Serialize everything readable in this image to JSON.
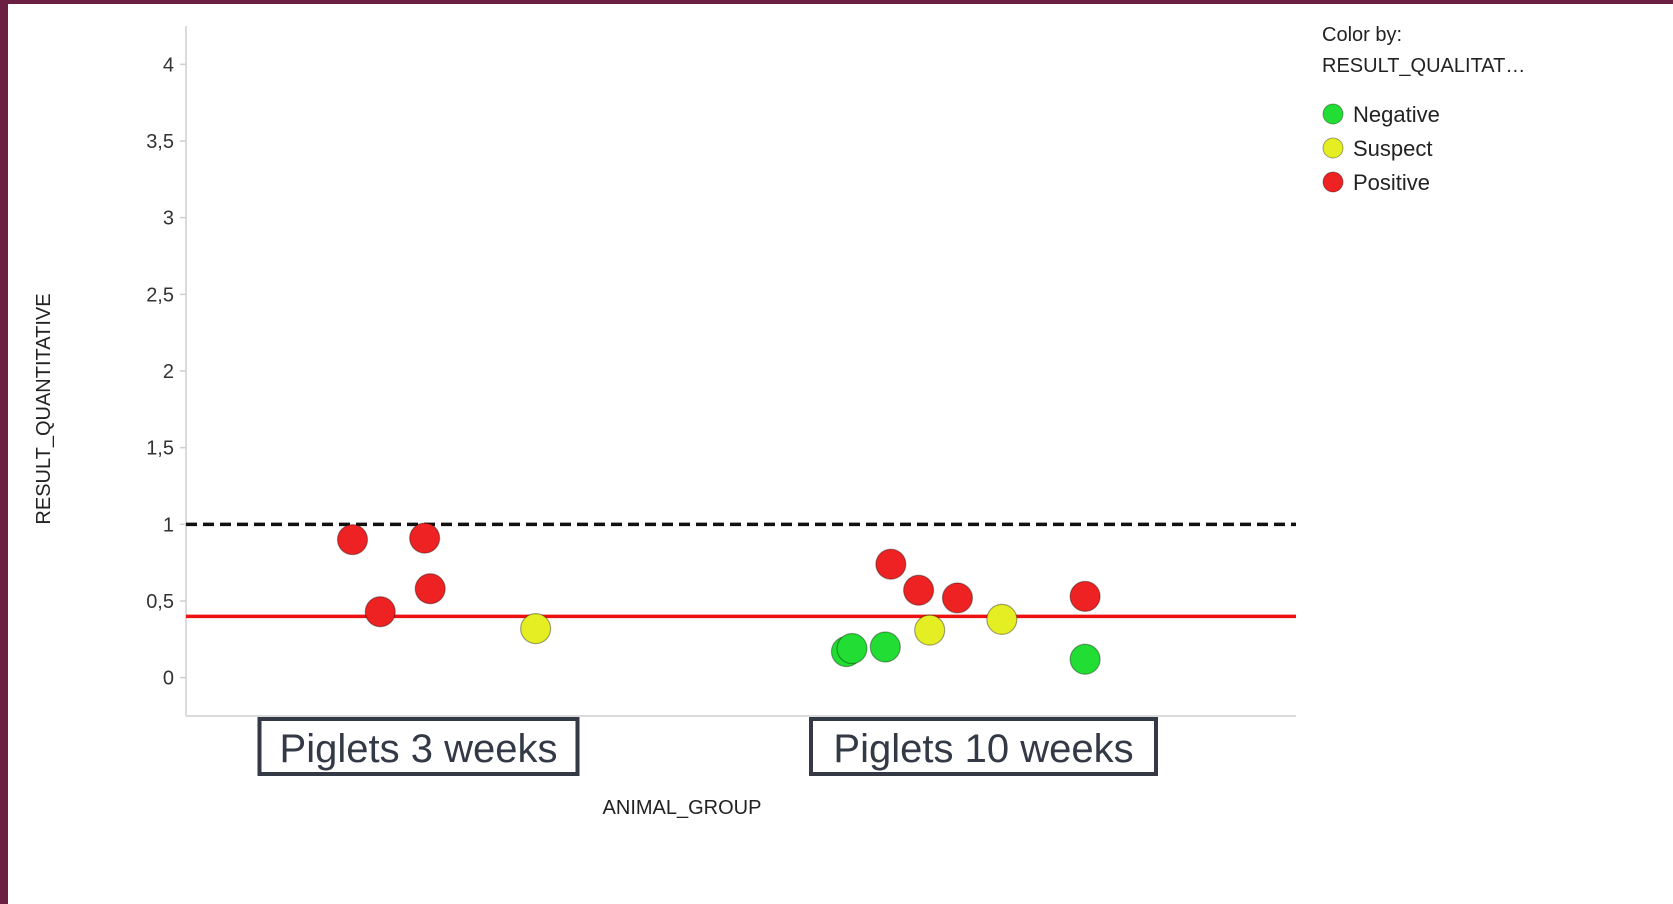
{
  "chart_data": {
    "type": "scatter",
    "xlabel": "ANIMAL_GROUP",
    "ylabel": "RESULT_QUANTITATIVE",
    "ylim": [
      -0.25,
      4.25
    ],
    "yticks": [
      0,
      0.5,
      1,
      1.5,
      2,
      2.5,
      3,
      3.5,
      4
    ],
    "ytick_labels": [
      "0",
      "0,5",
      "1",
      "1,5",
      "2",
      "2,5",
      "3",
      "3,5",
      "4"
    ],
    "categories": [
      "Piglets 3 weeks",
      "Piglets 10 weeks"
    ],
    "grid": false,
    "legend": {
      "title_line1": "Color by:",
      "title_line2": "RESULT_QUALITAT…",
      "placement": "top-right",
      "entries": [
        {
          "label": "Negative",
          "color": "#22dd33"
        },
        {
          "label": "Suspect",
          "color": "#e5ee22"
        },
        {
          "label": "Positive",
          "color": "#ee2222"
        }
      ]
    },
    "reference_lines": [
      {
        "y": 1.0,
        "style": "dashed",
        "color": "#111111"
      },
      {
        "y": 0.4,
        "style": "solid",
        "color": "#ee1111"
      }
    ],
    "points": [
      {
        "category": "Piglets 3 weeks",
        "offset": -0.2,
        "y": 0.9,
        "result": "Positive"
      },
      {
        "category": "Piglets 3 weeks",
        "offset": -0.15,
        "y": 0.43,
        "result": "Positive"
      },
      {
        "category": "Piglets 3 weeks",
        "offset": -0.07,
        "y": 0.91,
        "result": "Positive"
      },
      {
        "category": "Piglets 3 weeks",
        "offset": -0.06,
        "y": 0.58,
        "result": "Positive"
      },
      {
        "category": "Piglets 3 weeks",
        "offset": 0.13,
        "y": 0.32,
        "result": "Suspect"
      },
      {
        "category": "Piglets 10 weeks",
        "offset": -0.31,
        "y": 0.17,
        "result": "Negative"
      },
      {
        "category": "Piglets 10 weeks",
        "offset": -0.3,
        "y": 0.19,
        "result": "Negative"
      },
      {
        "category": "Piglets 10 weeks",
        "offset": -0.24,
        "y": 0.2,
        "result": "Negative"
      },
      {
        "category": "Piglets 10 weeks",
        "offset": -0.23,
        "y": 0.74,
        "result": "Positive"
      },
      {
        "category": "Piglets 10 weeks",
        "offset": -0.18,
        "y": 0.57,
        "result": "Positive"
      },
      {
        "category": "Piglets 10 weeks",
        "offset": -0.16,
        "y": 0.31,
        "result": "Suspect"
      },
      {
        "category": "Piglets 10 weeks",
        "offset": -0.11,
        "y": 0.52,
        "result": "Positive"
      },
      {
        "category": "Piglets 10 weeks",
        "offset": -0.03,
        "y": 0.38,
        "result": "Suspect"
      },
      {
        "category": "Piglets 10 weeks",
        "offset": 0.12,
        "y": 0.53,
        "result": "Positive"
      },
      {
        "category": "Piglets 10 weeks",
        "offset": 0.12,
        "y": 0.12,
        "result": "Negative"
      }
    ]
  }
}
